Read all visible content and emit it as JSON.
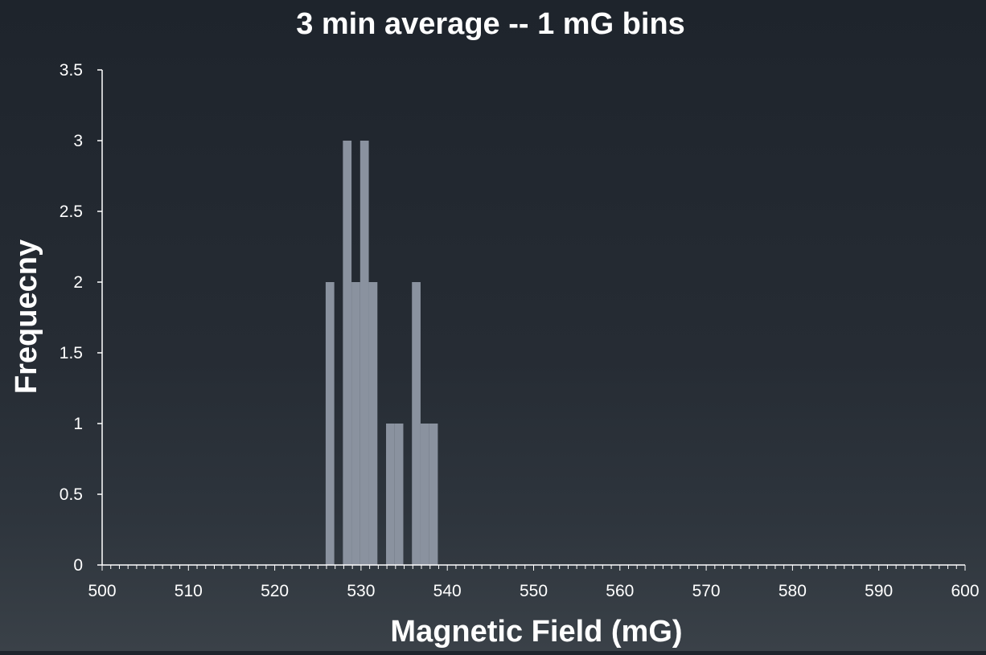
{
  "chart_data": {
    "type": "bar",
    "title": "3 min average -- 1 mG bins",
    "xlabel": "Magnetic Field (mG)",
    "ylabel": "Frequecny",
    "xlim": [
      500,
      600
    ],
    "ylim": [
      0,
      3.5
    ],
    "x_ticks": [
      500,
      510,
      520,
      530,
      540,
      550,
      560,
      570,
      580,
      590,
      600
    ],
    "y_ticks": [
      0,
      0.5,
      1,
      1.5,
      2,
      2.5,
      3,
      3.5
    ],
    "x_minor_step": 1,
    "bin_width": 1,
    "grid": false,
    "legend": "none",
    "bar_color": "#8a929f",
    "bins": [
      {
        "x": 526,
        "value": 2
      },
      {
        "x": 528,
        "value": 3
      },
      {
        "x": 529,
        "value": 2
      },
      {
        "x": 530,
        "value": 3
      },
      {
        "x": 531,
        "value": 2
      },
      {
        "x": 533,
        "value": 1
      },
      {
        "x": 534,
        "value": 1
      },
      {
        "x": 536,
        "value": 2
      },
      {
        "x": 537,
        "value": 1
      },
      {
        "x": 538,
        "value": 1
      }
    ]
  }
}
